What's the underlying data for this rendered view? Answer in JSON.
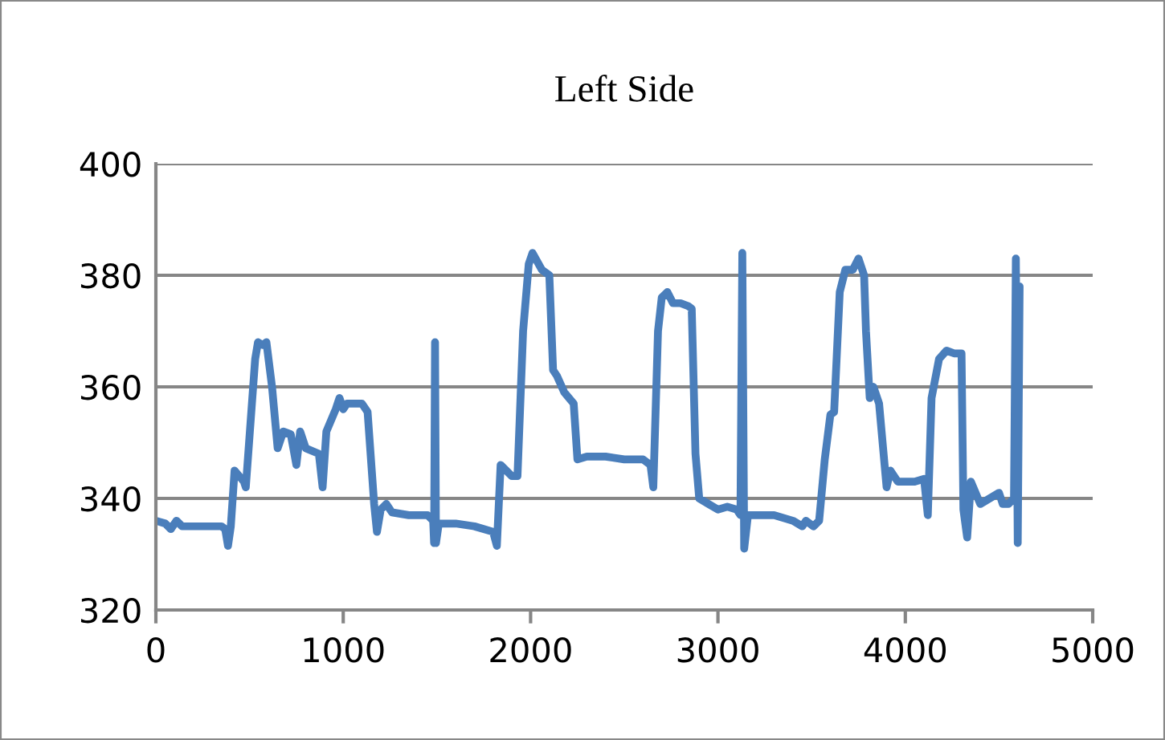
{
  "chart_data": {
    "type": "line",
    "title": "Left Side",
    "xlim": [
      0,
      5000
    ],
    "xticks": [
      0,
      1000,
      2000,
      3000,
      4000,
      5000
    ],
    "ylim": [
      320,
      400
    ],
    "yticks": [
      320,
      340,
      360,
      380,
      400
    ],
    "grid": "y",
    "legend": false,
    "marker": "none",
    "line_style": "solid",
    "series": [
      {
        "color": "#4a7ebb",
        "x": [
          0,
          50,
          80,
          110,
          140,
          200,
          300,
          350,
          370,
          385,
          400,
          420,
          470,
          480,
          530,
          545,
          570,
          590,
          620,
          650,
          680,
          720,
          750,
          770,
          800,
          870,
          890,
          910,
          960,
          980,
          1000,
          1020,
          1100,
          1130,
          1165,
          1180,
          1200,
          1230,
          1260,
          1350,
          1450,
          1480,
          1485,
          1490,
          1495,
          1510,
          1600,
          1700,
          1800,
          1820,
          1840,
          1900,
          1930,
          1960,
          1990,
          2010,
          2060,
          2100,
          2120,
          2140,
          2180,
          2230,
          2250,
          2300,
          2400,
          2500,
          2600,
          2640,
          2655,
          2680,
          2700,
          2730,
          2760,
          2800,
          2840,
          2860,
          2880,
          2900,
          2950,
          3000,
          3050,
          3100,
          3120,
          3130,
          3140,
          3160,
          3200,
          3300,
          3400,
          3450,
          3470,
          3490,
          3510,
          3540,
          3570,
          3600,
          3620,
          3650,
          3680,
          3720,
          3750,
          3780,
          3790,
          3810,
          3830,
          3860,
          3900,
          3920,
          3960,
          4050,
          4100,
          4120,
          4140,
          4180,
          4220,
          4260,
          4300,
          4310,
          4330,
          4350,
          4400,
          4450,
          4500,
          4520,
          4550,
          4580,
          4590,
          4600,
          4610
        ],
        "values": [
          336,
          335.5,
          334.5,
          336,
          335,
          335,
          335,
          335,
          334.5,
          331.5,
          335,
          345,
          343,
          342,
          365,
          368,
          367.5,
          368,
          360,
          349,
          352,
          351.5,
          346,
          352,
          349,
          348,
          342,
          352,
          356,
          358,
          356,
          357,
          357,
          355.5,
          339,
          334,
          338,
          339,
          337.5,
          337,
          337,
          336,
          332,
          368,
          332,
          335.5,
          335.5,
          335,
          334,
          331.5,
          346,
          344,
          344,
          370,
          382,
          384,
          381,
          380,
          363,
          362,
          359,
          357,
          347,
          347.5,
          347.5,
          347,
          347,
          346,
          342,
          370,
          376,
          377,
          375,
          375,
          374.5,
          374,
          348,
          340,
          339,
          338,
          338.5,
          338,
          337,
          384,
          331,
          337,
          337,
          337,
          336,
          335,
          336,
          335.5,
          335,
          336,
          347,
          355,
          355.5,
          377,
          381,
          381,
          383,
          380,
          370,
          358,
          360,
          357,
          342,
          345,
          343,
          343,
          343.5,
          337,
          358,
          365,
          366.5,
          366,
          366,
          338,
          333,
          343,
          339,
          340,
          341,
          339,
          339,
          340,
          383,
          332,
          378
        ]
      }
    ]
  }
}
